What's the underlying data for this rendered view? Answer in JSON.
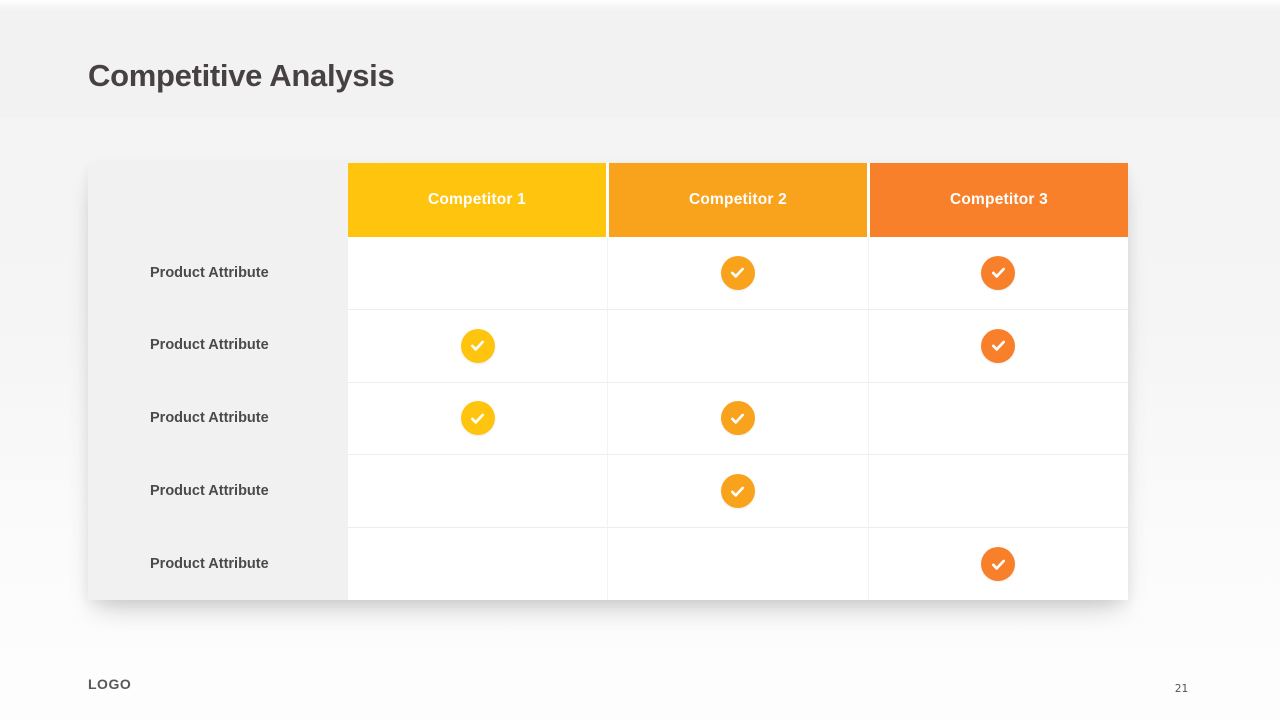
{
  "slide": {
    "title": "Competitive Analysis",
    "logo": "LOGO",
    "page_number": "21"
  },
  "icons": {
    "check": "checkmark-icon"
  },
  "table": {
    "columns": [
      {
        "label": "Competitor 1",
        "color": "#FFC40D"
      },
      {
        "label": "Competitor 2",
        "color": "#F9A21B"
      },
      {
        "label": "Competitor 3",
        "color": "#F8802B"
      }
    ],
    "rows": [
      {
        "label": "Product Attribute",
        "checks": [
          false,
          true,
          true
        ]
      },
      {
        "label": "Product Attribute",
        "checks": [
          true,
          false,
          true
        ]
      },
      {
        "label": "Product Attribute",
        "checks": [
          true,
          true,
          false
        ]
      },
      {
        "label": "Product Attribute",
        "checks": [
          false,
          true,
          false
        ]
      },
      {
        "label": "Product Attribute",
        "checks": [
          false,
          false,
          true
        ]
      }
    ]
  }
}
